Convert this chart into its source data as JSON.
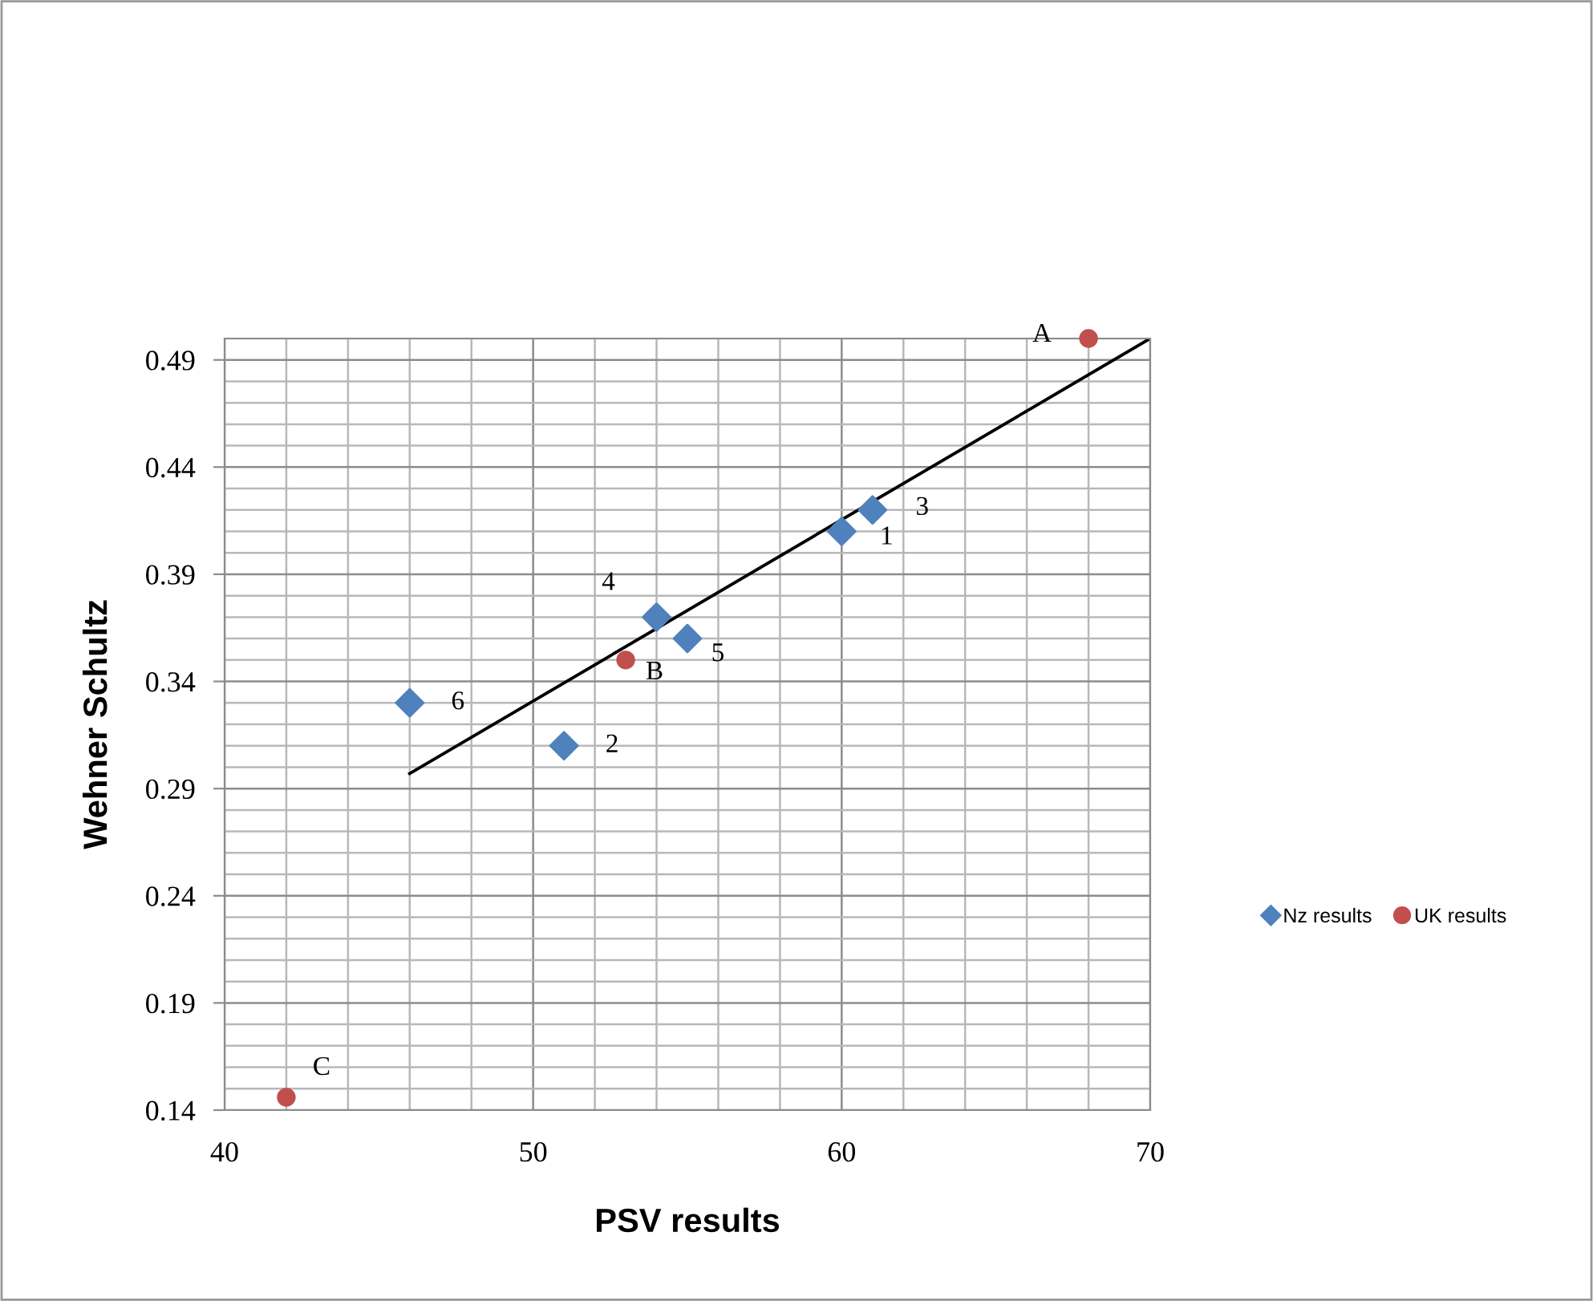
{
  "chart_data": {
    "type": "scatter",
    "xlabel": "PSV results",
    "ylabel": "Wehner Schultz",
    "xlim": [
      40,
      70
    ],
    "xticks": [
      40,
      50,
      60,
      70
    ],
    "ylim": [
      0.14,
      0.5
    ],
    "yticks": [
      0.14,
      0.19,
      0.24,
      0.29,
      0.34,
      0.39,
      0.44,
      0.49
    ],
    "grid": true,
    "legend": "right",
    "series": [
      {
        "name": "Nz results",
        "color": "#4f81bd",
        "marker": "diamond",
        "x": [
          60,
          51,
          61,
          54,
          55,
          46
        ],
        "values": [
          0.41,
          0.31,
          0.42,
          0.37,
          0.36,
          0.33
        ]
      },
      {
        "name": "UK results",
        "color": "#c0504d",
        "marker": "circle",
        "x": [
          68,
          53,
          42
        ],
        "values": [
          0.5,
          0.35,
          0.146
        ]
      },
      {
        "type": "line",
        "color": "#000000",
        "marker": "none",
        "x": [
          46,
          70
        ],
        "values": [
          0.297,
          0.5
        ]
      }
    ],
    "annotations": [
      {
        "text": "1",
        "x": 60,
        "y": 0.41
      },
      {
        "text": "2",
        "x": 51,
        "y": 0.31
      },
      {
        "text": "3",
        "x": 61,
        "y": 0.42
      },
      {
        "text": "4",
        "x": 54,
        "y": 0.37
      },
      {
        "text": "5",
        "x": 55,
        "y": 0.36
      },
      {
        "text": "6",
        "x": 46,
        "y": 0.33
      },
      {
        "text": "A",
        "x": 68,
        "y": 0.5
      },
      {
        "text": "B",
        "x": 53,
        "y": 0.35
      },
      {
        "text": "C",
        "x": 42,
        "y": 0.146
      }
    ]
  }
}
